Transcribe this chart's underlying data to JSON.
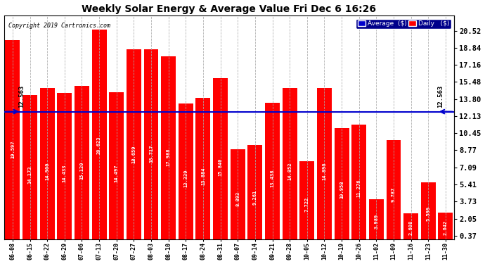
{
  "title": "Weekly Solar Energy & Average Value Fri Dec 6 16:26",
  "copyright": "Copyright 2019 Cartronics.com",
  "categories": [
    "06-08",
    "06-15",
    "06-22",
    "06-29",
    "07-06",
    "07-13",
    "07-20",
    "07-27",
    "08-03",
    "08-10",
    "08-17",
    "08-24",
    "08-31",
    "09-07",
    "09-14",
    "09-21",
    "09-28",
    "10-05",
    "10-12",
    "10-19",
    "10-26",
    "11-02",
    "11-09",
    "11-16",
    "11-23",
    "11-30"
  ],
  "values": [
    19.597,
    14.173,
    14.9,
    14.433,
    15.12,
    20.623,
    14.497,
    18.659,
    18.717,
    17.988,
    13.339,
    13.884,
    15.84,
    8.893,
    9.261,
    13.438,
    14.852,
    7.722,
    14.896,
    10.958,
    11.276,
    3.989,
    9.787,
    2.608,
    5.599,
    2.642
  ],
  "average_line": 12.563,
  "average_label": "12.563",
  "bar_color": "#ff0000",
  "bar_edge_color": "#cc0000",
  "average_line_color": "#0000cd",
  "background_color": "#ffffff",
  "plot_bg_color": "#ffffff",
  "grid_color": "#aaaaaa",
  "yticks_right": [
    0.37,
    2.05,
    3.73,
    5.41,
    7.09,
    8.77,
    10.45,
    12.13,
    13.8,
    15.48,
    17.16,
    18.84,
    20.52
  ],
  "legend_avg_color": "#0000cd",
  "legend_daily_color": "#ff0000",
  "figsize": [
    6.9,
    3.75
  ],
  "dpi": 100,
  "ymax": 22.0
}
